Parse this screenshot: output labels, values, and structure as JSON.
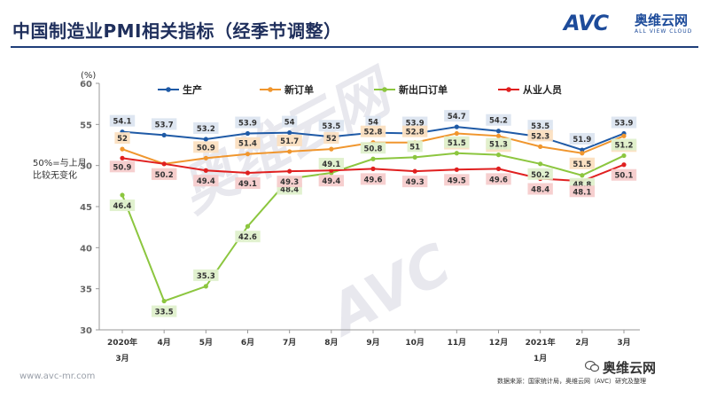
{
  "title": "中国制造业PMI相关指标（经季节调整）",
  "logo": {
    "mark": "AVC",
    "cn": "奥维云网",
    "en": "ALL VIEW CLOUD"
  },
  "unit": "(%)",
  "annotation": "50%=与上月\n比较无变化",
  "footer": {
    "url": "www.avc-mr.com",
    "source": "数据来源：国家统计局，奥维云网（AVC）研究及整理",
    "wechat": "奥维云网"
  },
  "colors": {
    "production": "#1f5aa6",
    "new_orders": "#f0962e",
    "export_orders": "#8cc63f",
    "employment": "#e02020"
  },
  "chart_data": {
    "type": "line",
    "categories": [
      "2020年\n3月",
      "4月",
      "5月",
      "6月",
      "7月",
      "8月",
      "9月",
      "10月",
      "11月",
      "12月",
      "2021年\n1月",
      "2月",
      "3月"
    ],
    "ylim": [
      30,
      60
    ],
    "yticks": [
      30,
      35,
      40,
      45,
      50,
      55,
      60
    ],
    "grid": false,
    "legend": "top",
    "series": [
      {
        "name": "生产",
        "values": [
          54.1,
          53.7,
          53.2,
          53.9,
          54,
          53.5,
          54,
          53.9,
          54.7,
          54.2,
          53.5,
          51.9,
          53.9
        ]
      },
      {
        "name": "新订单",
        "values": [
          52,
          50.2,
          50.9,
          51.4,
          51.7,
          52,
          52.8,
          52.8,
          53.9,
          53.6,
          52.3,
          51.5,
          53.6
        ]
      },
      {
        "name": "新出口订单",
        "values": [
          46.4,
          33.5,
          35.3,
          42.6,
          48.4,
          49.1,
          50.8,
          51,
          51.5,
          51.3,
          50.2,
          48.8,
          51.2
        ]
      },
      {
        "name": "从业人员",
        "values": [
          50.9,
          50.2,
          49.4,
          49.1,
          49.3,
          49.4,
          49.6,
          49.3,
          49.5,
          49.6,
          48.4,
          48.1,
          50.1
        ]
      }
    ]
  }
}
